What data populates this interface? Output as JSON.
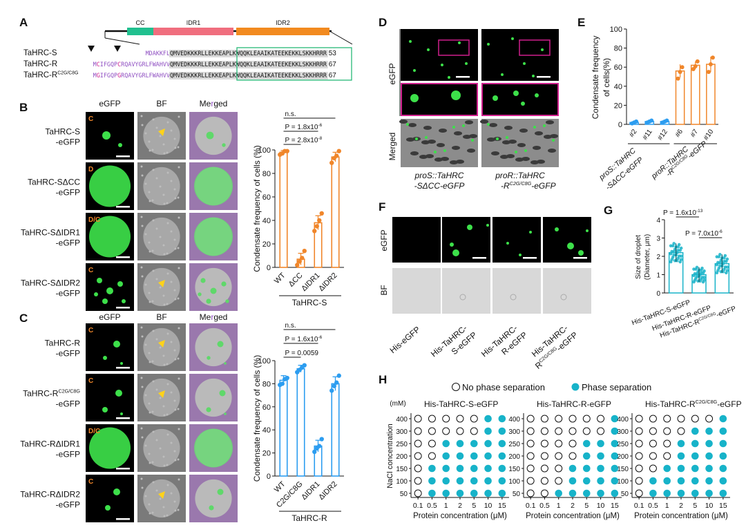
{
  "panel_letters": [
    "A",
    "B",
    "C",
    "D",
    "E",
    "F",
    "G",
    "H"
  ],
  "colors": {
    "orange": "#f0862a",
    "blue": "#2c9df0",
    "teal": "#17b3c9",
    "green": "#3de04a",
    "cc_box": "#21c08f",
    "idr1_box": "#f06e7e",
    "idr2_box": "#f28a1f",
    "purple": "#8f4fc2",
    "magenta": "#d01f8e",
    "yellow": "#ffd21a",
    "seq_shade": "#d9d9d9",
    "seq_box": "#27b877"
  },
  "panel_a": {
    "domains": [
      "CC",
      "IDR1",
      "IDR2"
    ],
    "rows": [
      {
        "name": "TaHRC-S",
        "sup": "",
        "purple": "MDAKKFL",
        "gray": "QMVEDKKKRLLEKKEAPLKWQQKLEAAIKATEEKEKKLSKKHRRR",
        "end": "53"
      },
      {
        "name": "TaHRC-R",
        "sup": "",
        "purple": "MCIFGQPCRQAVYGRLFWAHVV",
        "gray": "QMVEDKKKRLLEKKEAPLKWQQKLEAAIKATEEKEKKLSKKHRRR",
        "end": "67"
      },
      {
        "name": "TaHRC-R",
        "sup": "C2G/C8G",
        "purple": "MGIFGQPGRQAVYGRLFWAHVV",
        "gray": "QMVEDKKKRLLEKKEAPLKWQQKLEAAIKATEEKEKKLSKKHRRR",
        "end": "67"
      }
    ]
  },
  "panel_b": {
    "col_headers": [
      "eGFP",
      "BF",
      "Merged"
    ],
    "rows": [
      {
        "name": "TaHRC-S",
        "name2": "-eGFP",
        "tag": "C"
      },
      {
        "name": "TaHRC-SΔCC",
        "name2": "-eGFP",
        "tag": "D"
      },
      {
        "name": "TaHRC-SΔIDR1",
        "name2": "-eGFP",
        "tag": "D/C"
      },
      {
        "name": "TaHRC-SΔIDR2",
        "name2": "-eGFP",
        "tag": "C"
      }
    ],
    "chart_data": {
      "type": "bar",
      "categories": [
        "WT",
        "ΔCC",
        "ΔIDR1",
        "ΔIDR2"
      ],
      "values": [
        98,
        7,
        38,
        94
      ],
      "points": [
        [
          96,
          97,
          99,
          99
        ],
        [
          2,
          5,
          8,
          14
        ],
        [
          31,
          35,
          40,
          46
        ],
        [
          89,
          93,
          95,
          99
        ]
      ],
      "errors": [
        1.5,
        5,
        6,
        4
      ],
      "ylabel": "Condensate frequency of cells (%)",
      "group_label": "TaHRC-S",
      "ylim": [
        0,
        100
      ],
      "yticks": [
        0,
        20,
        40,
        60,
        80,
        100
      ],
      "stats": [
        "n.s.",
        "P = 1.8x10-6",
        "P = 2.8x10-8"
      ]
    }
  },
  "panel_c": {
    "col_headers": [
      "eGFP",
      "BF",
      "Merged"
    ],
    "rows": [
      {
        "name": "TaHRC-R",
        "sup": "",
        "name2": "-eGFP",
        "tag": "C"
      },
      {
        "name": "TaHRC-R",
        "sup": "C2G/C8G",
        "name2": "-eGFP",
        "tag": "C"
      },
      {
        "name": "TaHRC-RΔIDR1",
        "sup": "",
        "name2": "-eGFP",
        "tag": "D/C"
      },
      {
        "name": "TaHRC-RΔIDR2",
        "sup": "",
        "name2": "-eGFP",
        "tag": "C"
      }
    ],
    "chart_data": {
      "type": "bar",
      "categories": [
        "WT",
        "C2G/C8G",
        "ΔIDR1",
        "ΔIDR2"
      ],
      "values": [
        83,
        93,
        26,
        80
      ],
      "points": [
        [
          79,
          80,
          84,
          85
        ],
        [
          90,
          92,
          94,
          96
        ],
        [
          21,
          24,
          26,
          32
        ],
        [
          74,
          78,
          81,
          87
        ]
      ],
      "errors": [
        4,
        3,
        5,
        6
      ],
      "ylabel": "Condensate frequency of cells (%)",
      "group_label": "TaHRC-R",
      "ylim": [
        0,
        100
      ],
      "yticks": [
        0,
        20,
        40,
        60,
        80,
        100
      ],
      "stats": [
        "n.s.",
        "P = 1.6x10-6",
        "P = 0.0059"
      ]
    }
  },
  "panel_d": {
    "row_labels": [
      "eGFP",
      "Merged"
    ],
    "captions": [
      {
        "l1": "proS::TaHRC",
        "l2": "-SΔCC-eGFP",
        "sup": ""
      },
      {
        "l1": "proR::TaHRC",
        "l2": "-R",
        "sup": "C2G/C8G",
        "l3": "-eGFP"
      }
    ]
  },
  "panel_e": {
    "chart_data": {
      "type": "bar",
      "categories": [
        "#2",
        "#11",
        "#12",
        "#6",
        "#7",
        "#10"
      ],
      "values": [
        2,
        3,
        3,
        56,
        62,
        63
      ],
      "points": [
        [
          1,
          2,
          3
        ],
        [
          2,
          3,
          4
        ],
        [
          2,
          3,
          4
        ],
        [
          48,
          55,
          60
        ],
        [
          58,
          61,
          66
        ],
        [
          55,
          63,
          70
        ]
      ],
      "errors": [
        1,
        1,
        1,
        7,
        4,
        8
      ],
      "ylabel": "Condensate frequency of cells(%)",
      "ylim": [
        0,
        100
      ],
      "yticks": [
        0,
        20,
        40,
        60,
        80,
        100
      ],
      "groups": [
        {
          "l1": "proS::TaHRC",
          "l2": "-SΔCC-eGFP",
          "sup": ""
        },
        {
          "l1": "proR::TaHRC",
          "l2": "-R",
          "sup": "C2G/C8G",
          "l3": "-eGFP"
        }
      ]
    }
  },
  "panel_f": {
    "row_labels": [
      "eGFP",
      "BF"
    ],
    "columns": [
      {
        "l1": "His-eGFP",
        "l2": "",
        "sup": ""
      },
      {
        "l1": "His-TaHRC-",
        "l2": "S-eGFP",
        "sup": ""
      },
      {
        "l1": "His-TaHRC-",
        "l2": "R-eGFP",
        "sup": ""
      },
      {
        "l1": "His-TaHRC-",
        "l2": "R",
        "sup": "C2G/C8G",
        "l3": "-eGFP"
      }
    ]
  },
  "panel_g": {
    "chart_data": {
      "type": "bar",
      "categories": [
        "His-TaHRC-S-eGFP",
        "His-TaHRC-R-eGFP",
        "His-TaHRC-R(C2G/C8G)-eGFP"
      ],
      "values": [
        2.2,
        1.0,
        1.6
      ],
      "errors": [
        0.5,
        0.4,
        0.5
      ],
      "ylabel": "Size of droplet",
      "ylabel2": "(Diameter, μm)",
      "ylim": [
        0,
        4
      ],
      "yticks": [
        0,
        1,
        2,
        3,
        4
      ],
      "stats": [
        "P = 1.6x10-13",
        "P = 7.0x10-6"
      ],
      "labels": [
        {
          "l1": "His-TaHRC-S-eGFP",
          "sup": ""
        },
        {
          "l1": "His-TaHRC-R-eGFP",
          "sup": ""
        },
        {
          "l1": "His-TaHRC-R",
          "sup": "C2G/C8G",
          "l3": "-eGFP"
        }
      ]
    }
  },
  "panel_h": {
    "legend": [
      "No phase separation",
      "Phase separation"
    ],
    "y_unit": "(mM)",
    "ylabel": "NaCl concentration",
    "xlabel": "Protein concentration (μM)",
    "nacl": [
      400,
      300,
      250,
      200,
      150,
      100,
      50
    ],
    "protein": [
      "0.1",
      "0.5",
      "1",
      "2",
      "5",
      "10",
      "15"
    ],
    "chart_data": [
      {
        "type": "table",
        "title": "His-TaHRC-S-eGFP",
        "title_sup": "",
        "thresholds": [
          5,
          5,
          2,
          2,
          1,
          1,
          1
        ]
      },
      {
        "type": "table",
        "title": "His-TaHRC-R-eGFP",
        "title_sup": "",
        "thresholds": [
          6,
          6,
          4,
          4,
          3,
          3,
          2
        ]
      },
      {
        "type": "table",
        "title": "His-TaHRC-R",
        "title_sup": "C2G/C8G",
        "title_tail": "-eGFP",
        "thresholds": [
          6,
          4,
          3,
          3,
          2,
          1,
          1
        ]
      }
    ]
  }
}
